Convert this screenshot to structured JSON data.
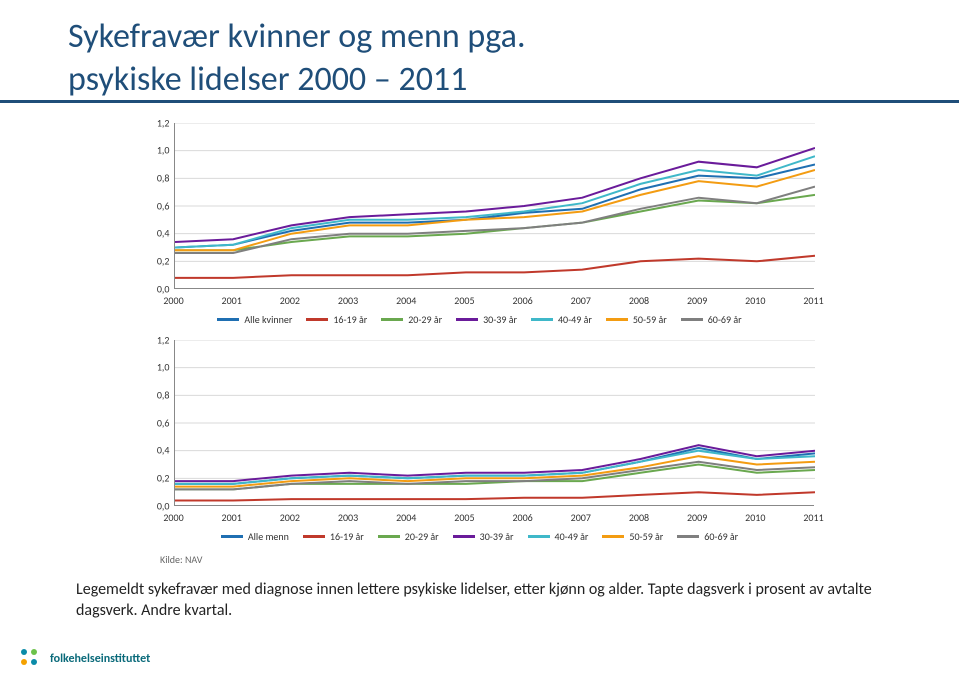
{
  "title_line1": "Sykefravær kvinner og menn pga.",
  "title_line2": "psykiske lidelser 2000 – 2011",
  "years": [
    "2000",
    "2001",
    "2002",
    "2003",
    "2004",
    "2005",
    "2006",
    "2007",
    "2008",
    "2009",
    "2010",
    "2011"
  ],
  "yticks": [
    "0,0",
    "0,2",
    "0,4",
    "0,6",
    "0,8",
    "1,0",
    "1,2"
  ],
  "ylim": [
    0,
    1.2
  ],
  "kilde": "Kilde: NAV",
  "caption": "Legemeldt sykefravær med diagnose innen lettere psykiske lidelser, etter kjønn og alder. Tapte dagsverk i prosent av avtalte dagsverk. Andre kvartal.",
  "footer": "folkehelseinstituttet",
  "chart_women": {
    "legend_all": "Alle kvinner",
    "series": [
      {
        "name": "Alle kvinner",
        "color": "#1f6fb2",
        "values": [
          0.3,
          0.32,
          0.42,
          0.48,
          0.48,
          0.5,
          0.55,
          0.58,
          0.72,
          0.82,
          0.8,
          0.9
        ]
      },
      {
        "name": "16-19 år",
        "color": "#c0392b",
        "values": [
          0.08,
          0.08,
          0.1,
          0.1,
          0.1,
          0.12,
          0.12,
          0.14,
          0.2,
          0.22,
          0.2,
          0.24
        ]
      },
      {
        "name": "20-29 år",
        "color": "#6aa84f",
        "values": [
          0.28,
          0.28,
          0.34,
          0.38,
          0.38,
          0.4,
          0.44,
          0.48,
          0.56,
          0.64,
          0.62,
          0.68
        ]
      },
      {
        "name": "30-39 år",
        "color": "#6a1b9a",
        "values": [
          0.34,
          0.36,
          0.46,
          0.52,
          0.54,
          0.56,
          0.6,
          0.66,
          0.8,
          0.92,
          0.88,
          1.02
        ]
      },
      {
        "name": "40-49 år",
        "color": "#3fb8c9",
        "values": [
          0.3,
          0.32,
          0.44,
          0.5,
          0.5,
          0.52,
          0.56,
          0.62,
          0.76,
          0.86,
          0.82,
          0.96
        ]
      },
      {
        "name": "50-59 år",
        "color": "#f39c12",
        "values": [
          0.28,
          0.28,
          0.4,
          0.46,
          0.46,
          0.5,
          0.52,
          0.56,
          0.68,
          0.78,
          0.74,
          0.86
        ]
      },
      {
        "name": "60-69 år",
        "color": "#7f7f7f",
        "values": [
          0.26,
          0.26,
          0.36,
          0.4,
          0.4,
          0.42,
          0.44,
          0.48,
          0.58,
          0.66,
          0.62,
          0.74
        ]
      }
    ]
  },
  "chart_men": {
    "legend_all": "Alle menn",
    "series": [
      {
        "name": "Alle menn",
        "color": "#1f6fb2",
        "values": [
          0.16,
          0.16,
          0.2,
          0.22,
          0.2,
          0.22,
          0.22,
          0.24,
          0.32,
          0.42,
          0.34,
          0.38
        ]
      },
      {
        "name": "16-19 år",
        "color": "#c0392b",
        "values": [
          0.04,
          0.04,
          0.05,
          0.05,
          0.05,
          0.05,
          0.06,
          0.06,
          0.08,
          0.1,
          0.08,
          0.1
        ]
      },
      {
        "name": "20-29 år",
        "color": "#6aa84f",
        "values": [
          0.12,
          0.12,
          0.16,
          0.16,
          0.16,
          0.16,
          0.18,
          0.18,
          0.24,
          0.3,
          0.24,
          0.26
        ]
      },
      {
        "name": "30-39 år",
        "color": "#6a1b9a",
        "values": [
          0.18,
          0.18,
          0.22,
          0.24,
          0.22,
          0.24,
          0.24,
          0.26,
          0.34,
          0.44,
          0.36,
          0.4
        ]
      },
      {
        "name": "40-49 år",
        "color": "#3fb8c9",
        "values": [
          0.16,
          0.16,
          0.2,
          0.22,
          0.2,
          0.22,
          0.22,
          0.24,
          0.32,
          0.4,
          0.34,
          0.36
        ]
      },
      {
        "name": "50-59 år",
        "color": "#f39c12",
        "values": [
          0.14,
          0.14,
          0.18,
          0.2,
          0.18,
          0.2,
          0.2,
          0.22,
          0.28,
          0.36,
          0.3,
          0.32
        ]
      },
      {
        "name": "60-69 år",
        "color": "#7f7f7f",
        "values": [
          0.12,
          0.12,
          0.16,
          0.18,
          0.16,
          0.18,
          0.18,
          0.2,
          0.26,
          0.32,
          0.26,
          0.28
        ]
      }
    ]
  },
  "age_labels": [
    "16-19 år",
    "20-29 år",
    "30-39 år",
    "40-49 år",
    "50-59 år",
    "60-69 år"
  ]
}
